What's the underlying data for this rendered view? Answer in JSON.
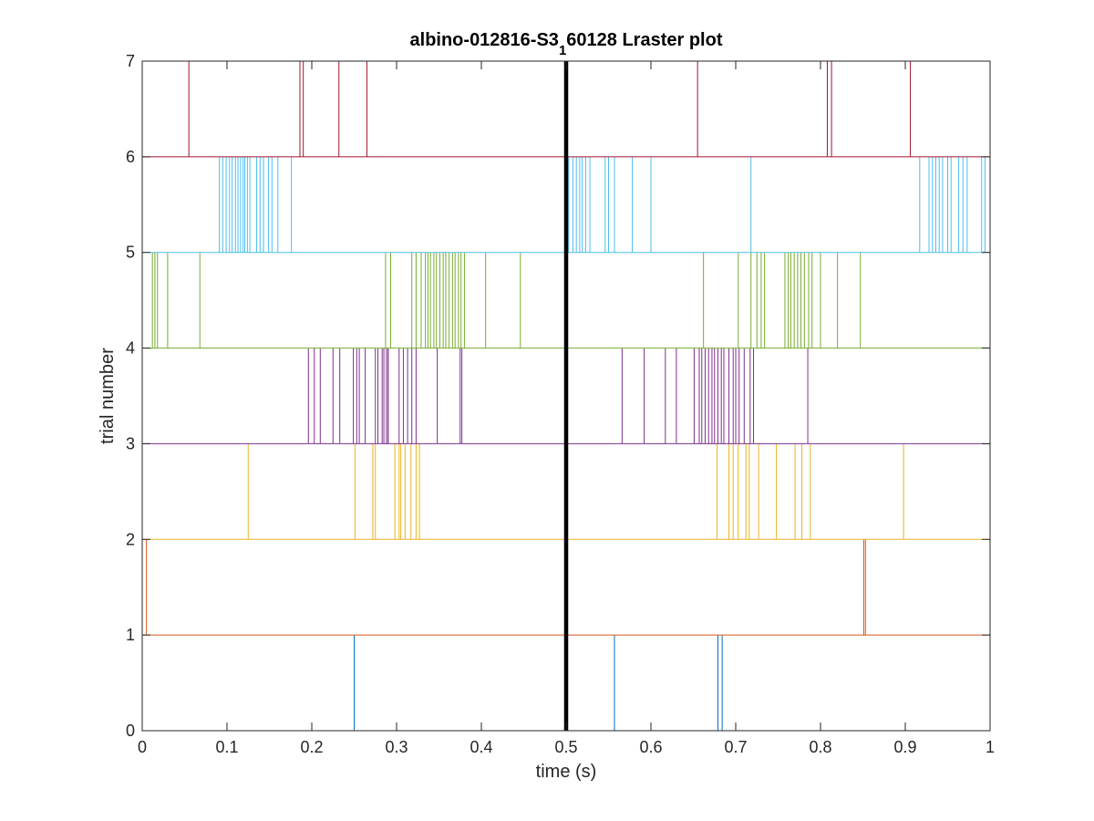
{
  "chart_data": {
    "type": "raster",
    "title_main": "albino-012816-S3",
    "title_sub": "1",
    "title_rest": "60128 Lraster plot",
    "xlabel": "time (s)",
    "ylabel": "trial number",
    "xlim": [
      0,
      1
    ],
    "ylim": [
      0,
      7
    ],
    "xticks": [
      "0",
      "0.1",
      "0.2",
      "0.3",
      "0.4",
      "0.5",
      "0.6",
      "0.7",
      "0.8",
      "0.9",
      "1"
    ],
    "yticks": [
      "0",
      "1",
      "2",
      "3",
      "4",
      "5",
      "6",
      "7"
    ],
    "event_line_x": 0.5,
    "event_line_color": "#000000",
    "series": [
      {
        "trial": 1,
        "color": "#0072BD",
        "spikes": [
          0.25,
          0.557,
          0.679,
          0.684
        ]
      },
      {
        "trial": 2,
        "color": "#D95319",
        "spikes": [
          0.005,
          0.851,
          0.853
        ]
      },
      {
        "trial": 3,
        "color": "#EDB120",
        "spikes": [
          0.125,
          0.251,
          0.272,
          0.275,
          0.298,
          0.303,
          0.305,
          0.31,
          0.317,
          0.323,
          0.327,
          0.678,
          0.692,
          0.697,
          0.703,
          0.712,
          0.716,
          0.727,
          0.748,
          0.77,
          0.778,
          0.788,
          0.898
        ]
      },
      {
        "trial": 4,
        "color": "#7E2F8E",
        "spikes": [
          0.196,
          0.203,
          0.21,
          0.225,
          0.233,
          0.249,
          0.253,
          0.256,
          0.263,
          0.275,
          0.278,
          0.283,
          0.285,
          0.288,
          0.29,
          0.29,
          0.303,
          0.308,
          0.313,
          0.318,
          0.323,
          0.348,
          0.375,
          0.377,
          0.566,
          0.592,
          0.617,
          0.63,
          0.651,
          0.657,
          0.66,
          0.664,
          0.668,
          0.672,
          0.675,
          0.679,
          0.683,
          0.686,
          0.692,
          0.697,
          0.7,
          0.704,
          0.71,
          0.717,
          0.721,
          0.785
        ]
      },
      {
        "trial": 5,
        "color": "#77AC30",
        "spikes": [
          0.012,
          0.015,
          0.018,
          0.03,
          0.068,
          0.287,
          0.293,
          0.318,
          0.323,
          0.329,
          0.334,
          0.337,
          0.34,
          0.344,
          0.347,
          0.351,
          0.355,
          0.358,
          0.362,
          0.366,
          0.369,
          0.373,
          0.376,
          0.38,
          0.405,
          0.446,
          0.662,
          0.703,
          0.718,
          0.725,
          0.73,
          0.734,
          0.758,
          0.762,
          0.765,
          0.769,
          0.773,
          0.777,
          0.781,
          0.786,
          0.79,
          0.8,
          0.82,
          0.847
        ]
      },
      {
        "trial": 6,
        "color": "#4DBEEE",
        "spikes": [
          0.091,
          0.095,
          0.099,
          0.103,
          0.106,
          0.11,
          0.113,
          0.116,
          0.119,
          0.121,
          0.124,
          0.127,
          0.135,
          0.139,
          0.143,
          0.149,
          0.153,
          0.16,
          0.176,
          0.503,
          0.508,
          0.512,
          0.516,
          0.519,
          0.523,
          0.528,
          0.546,
          0.55,
          0.557,
          0.578,
          0.6,
          0.718,
          0.917,
          0.928,
          0.932,
          0.936,
          0.94,
          0.944,
          0.95,
          0.954,
          0.963,
          0.968,
          0.973,
          0.99,
          0.994
        ]
      },
      {
        "trial": 7,
        "color": "#A2142F",
        "spikes": [
          0.055,
          0.186,
          0.19,
          0.232,
          0.265,
          0.655,
          0.808,
          0.813,
          0.906
        ]
      }
    ]
  }
}
